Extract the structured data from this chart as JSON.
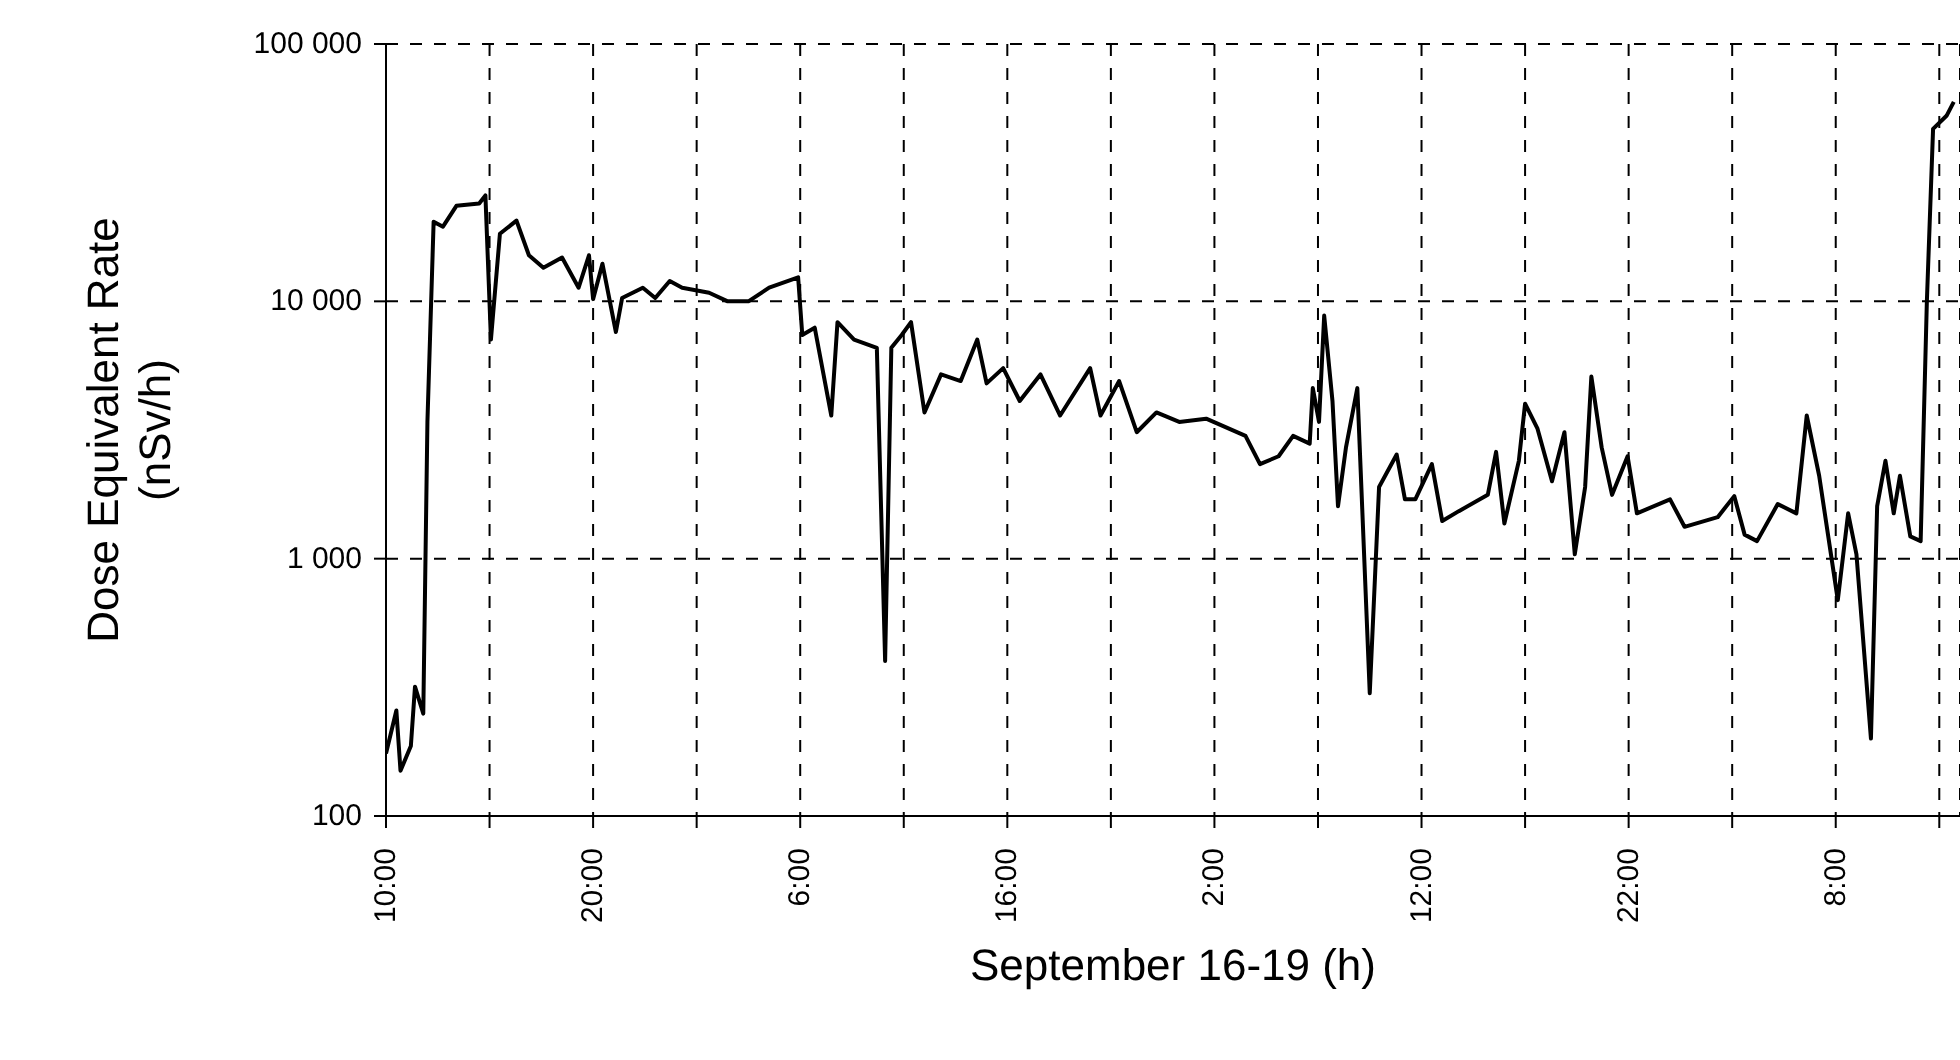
{
  "chart_data": {
    "type": "line",
    "xlabel": "September 16-19 (h)",
    "ylabel": "Dose Equivalent Rate\n(nSv/h)",
    "x": [
      "--09-16T10:00",
      "--09-16T10:30",
      "--09-16T10:42",
      "--09-16T11:12",
      "--09-16T11:24",
      "--09-16T11:48",
      "--09-16T12:00",
      "--09-16T12:18",
      "--09-16T12:45",
      "--09-16T13:24",
      "--09-16T14:30",
      "--09-16T14:48",
      "--09-16T15:04",
      "--09-16T15:30",
      "--09-16T16:18",
      "--09-16T16:54",
      "--09-16T17:36",
      "--09-16T18:30",
      "--09-16T19:18",
      "--09-16T19:48",
      "--09-16T20:00",
      "--09-16T20:27",
      "--09-16T21:06",
      "--09-16T21:24",
      "--09-16T22:24",
      "--09-16T23:00",
      "--09-16T23:42",
      "--09-17T00:18",
      "--09-17T01:36",
      "--09-17T02:30",
      "--09-17T03:30",
      "--09-17T04:30",
      "--09-17T05:54",
      "--09-17T06:06",
      "--09-17T06:42",
      "--09-17T07:30",
      "--09-17T07:48",
      "--09-17T08:36",
      "--09-17T09:42",
      "--09-17T10:06",
      "--09-17T10:24",
      "--09-17T10:54",
      "--09-17T11:21",
      "--09-17T12:00",
      "--09-17T12:48",
      "--09-17T13:45",
      "--09-17T14:33",
      "--09-17T15:00",
      "--09-17T15:48",
      "--09-17T16:36",
      "--09-17T17:36",
      "--09-17T18:33",
      "--09-17T20:00",
      "--09-17T20:30",
      "--09-17T21:24",
      "--09-17T22:15",
      "--09-17T23:12",
      "--09-18T00:18",
      "--09-18T01:36",
      "--09-18T03:30",
      "--09-18T04:12",
      "--09-18T05:06",
      "--09-18T05:48",
      "--09-18T06:36",
      "--09-18T06:45",
      "--09-18T07:03",
      "--09-18T07:18",
      "--09-18T07:42",
      "--09-18T07:58",
      "--09-18T08:21",
      "--09-18T08:54",
      "--09-18T09:30",
      "--09-18T09:57",
      "--09-18T10:48",
      "--09-18T11:12",
      "--09-18T11:42",
      "--09-18T12:30",
      "--09-18T13:00",
      "--09-18T13:48",
      "--09-18T15:12",
      "--09-18T15:36",
      "--09-18T16:00",
      "--09-18T16:42",
      "--09-18T17:00",
      "--09-18T17:36",
      "--09-18T18:18",
      "--09-18T18:54",
      "--09-18T19:24",
      "--09-18T19:54",
      "--09-18T20:12",
      "--09-18T20:42",
      "--09-18T21:12",
      "--09-18T21:57",
      "--09-18T22:24",
      "--09-19T00:00",
      "--09-19T00:42",
      "--09-19T02:18",
      "--09-19T03:06",
      "--09-19T03:36",
      "--09-19T04:12",
      "--09-19T05:12",
      "--09-19T06:06",
      "--09-19T06:36",
      "--09-19T07:12",
      "--09-19T08:06",
      "--09-19T08:36",
      "--09-19T09:00",
      "--09-19T09:42",
      "--09-19T10:00",
      "--09-19T10:24",
      "--09-19T10:48",
      "--09-19T11:06",
      "--09-19T11:36",
      "--09-19T12:06",
      "--09-19T12:24",
      "--09-19T12:42",
      "--09-19T13:21",
      "--09-19T13:42"
    ],
    "series": [
      {
        "color": "#000000",
        "values": [
          175,
          257,
          150,
          187,
          318,
          250,
          3400,
          20400,
          19500,
          23500,
          24000,
          25800,
          7100,
          18300,
          20600,
          15100,
          13500,
          14800,
          11300,
          15100,
          10200,
          14000,
          7600,
          10300,
          11300,
          10300,
          12000,
          11300,
          10800,
          10000,
          10000,
          11300,
          12400,
          7400,
          7900,
          3600,
          8300,
          7100,
          6600,
          400,
          6600,
          7400,
          8300,
          3700,
          5200,
          4900,
          7100,
          4800,
          5500,
          4100,
          5200,
          3600,
          5500,
          3600,
          4900,
          3100,
          3700,
          3400,
          3500,
          3000,
          2330,
          2500,
          3000,
          2800,
          4600,
          3400,
          8800,
          4100,
          1600,
          2700,
          4600,
          300,
          1900,
          2540,
          1700,
          1700,
          2330,
          1400,
          1530,
          1770,
          2600,
          1370,
          2400,
          4000,
          3200,
          2000,
          3100,
          1040,
          1900,
          5100,
          2700,
          1770,
          2500,
          1500,
          1700,
          1330,
          1450,
          1750,
          1240,
          1170,
          1630,
          1500,
          3600,
          2100,
          690,
          1500,
          1040,
          200,
          1600,
          2400,
          1500,
          2100,
          1220,
          1170,
          10000,
          46800,
          52600,
          59600
        ]
      }
    ],
    "xlim": [
      "--09-16T10:00",
      "--09-19T14:00"
    ],
    "xticks": [
      {
        "value": "--09-16T10:00",
        "label": "10:00"
      },
      {
        "value": "--09-16T15:00",
        "label": null
      },
      {
        "value": "--09-16T20:00",
        "label": "20:00"
      },
      {
        "value": "--09-17T01:00",
        "label": null
      },
      {
        "value": "--09-17T06:00",
        "label": "6:00"
      },
      {
        "value": "--09-17T11:00",
        "label": null
      },
      {
        "value": "--09-17T16:00",
        "label": "16:00"
      },
      {
        "value": "--09-17T21:00",
        "label": null
      },
      {
        "value": "--09-18T02:00",
        "label": "2:00"
      },
      {
        "value": "--09-18T07:00",
        "label": null
      },
      {
        "value": "--09-18T12:00",
        "label": "12:00"
      },
      {
        "value": "--09-18T17:00",
        "label": null
      },
      {
        "value": "--09-18T22:00",
        "label": "22:00"
      },
      {
        "value": "--09-19T03:00",
        "label": null
      },
      {
        "value": "--09-19T08:00",
        "label": "8:00"
      },
      {
        "value": "--09-19T13:00",
        "label": null
      }
    ],
    "ylim": [
      100,
      100000
    ],
    "yticks": [
      {
        "value": 100,
        "label": "100"
      },
      {
        "value": 1000,
        "label": "1 000"
      },
      {
        "value": 10000,
        "label": "10 000"
      },
      {
        "value": 100000,
        "label": "100 000"
      }
    ],
    "log": "y",
    "grid": true,
    "legend": false,
    "marker": "none",
    "line_style": "solid"
  }
}
